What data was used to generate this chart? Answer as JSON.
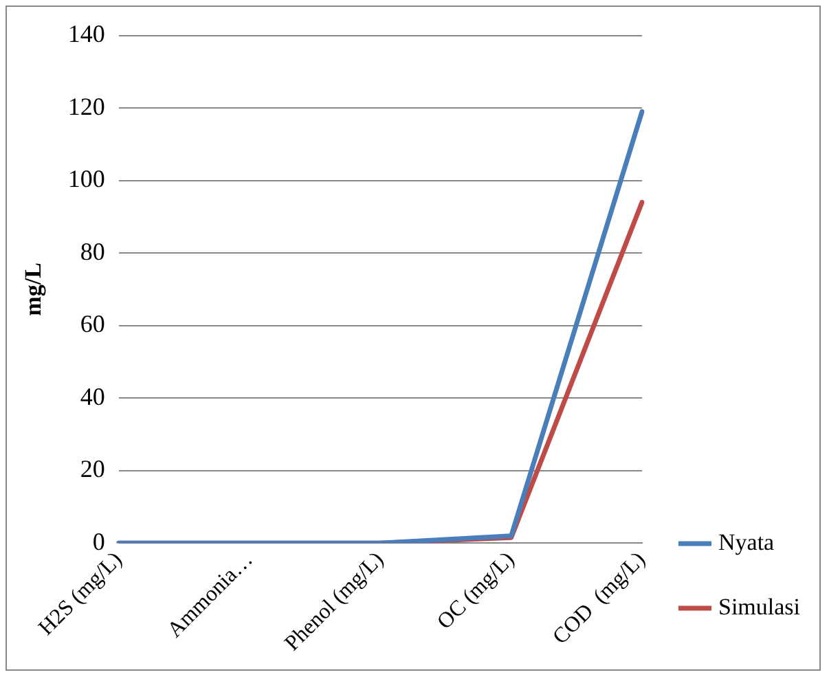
{
  "chart_data": {
    "type": "line",
    "ylabel": "mg/L",
    "categories": [
      "H2S (mg/L)",
      "Ammonia…",
      "Phenol (mg/L)",
      "OC (mg/L)",
      "COD  (mg/L)"
    ],
    "series": [
      {
        "name": "Nyata",
        "color": "#4a7ebb",
        "values": [
          0,
          0,
          0,
          2,
          119
        ]
      },
      {
        "name": "Simulasi",
        "color": "#be4b48",
        "values": [
          0,
          0,
          0,
          1.5,
          94
        ]
      }
    ],
    "ylim": [
      0,
      140
    ],
    "yticks": [
      0,
      20,
      40,
      60,
      80,
      100,
      120,
      140
    ],
    "grid": "y",
    "legend": "right",
    "marker": "none",
    "line_style": "solid"
  }
}
